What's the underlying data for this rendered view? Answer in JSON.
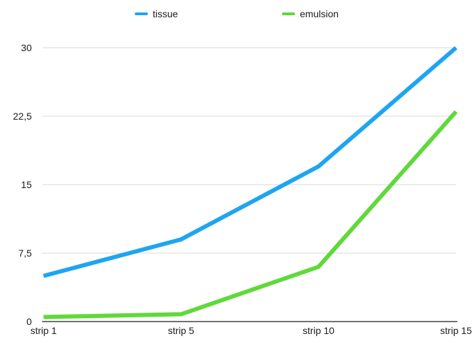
{
  "chart_data": {
    "type": "line",
    "categories": [
      "strip 1",
      "strip 5",
      "strip 10",
      "strip 15"
    ],
    "series": [
      {
        "name": "tissue",
        "values": [
          5,
          9,
          17,
          30
        ],
        "color": "#1ea5f2"
      },
      {
        "name": "emulsion",
        "values": [
          0.5,
          0.8,
          6,
          23
        ],
        "color": "#5fd93a"
      }
    ],
    "y_ticks": [
      "0",
      "7,5",
      "15",
      "22,5",
      "30"
    ],
    "y_tick_values": [
      0,
      7.5,
      15,
      22.5,
      30
    ],
    "ylim": [
      0,
      30
    ],
    "grid": true,
    "legend_position": "top-center",
    "title": "",
    "xlabel": "",
    "ylabel": ""
  }
}
